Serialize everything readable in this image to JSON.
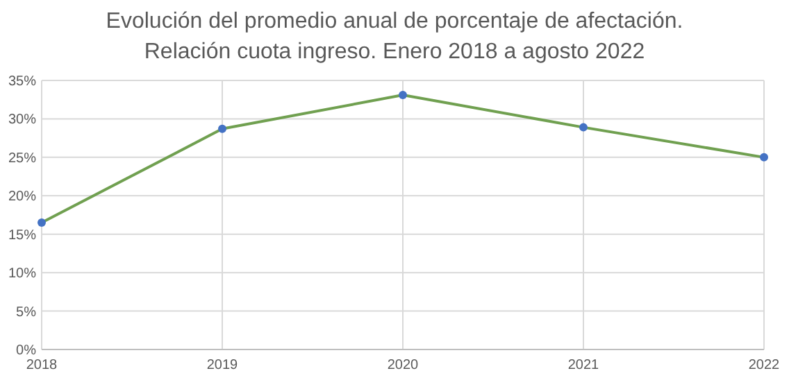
{
  "chart_data": {
    "type": "line",
    "title": "Evolución del promedio anual de porcentaje de afectación.\nRelación cuota ingreso. Enero 2018 a agosto 2022",
    "categories": [
      "2018",
      "2019",
      "2020",
      "2021",
      "2022"
    ],
    "series": [
      {
        "color": "#70a050",
        "colors": [
          "#4472c4",
          "#4472c4",
          "#4472c4",
          "#4472c4",
          "#4472c4"
        ],
        "values": [
          16.5,
          28.7,
          33.1,
          28.9,
          25.0
        ]
      }
    ],
    "ylim": [
      0,
      35
    ],
    "yticks": [
      {
        "value": 0,
        "label": "0%"
      },
      {
        "value": 5,
        "label": "5%"
      },
      {
        "value": 10,
        "label": "10%"
      },
      {
        "value": 15,
        "label": "15%"
      },
      {
        "value": 20,
        "label": "20%"
      },
      {
        "value": 25,
        "label": "25%"
      },
      {
        "value": 30,
        "label": "30%"
      },
      {
        "value": 35,
        "label": "35%"
      }
    ],
    "grid": true,
    "marker": "circle",
    "line_style": "solid"
  }
}
